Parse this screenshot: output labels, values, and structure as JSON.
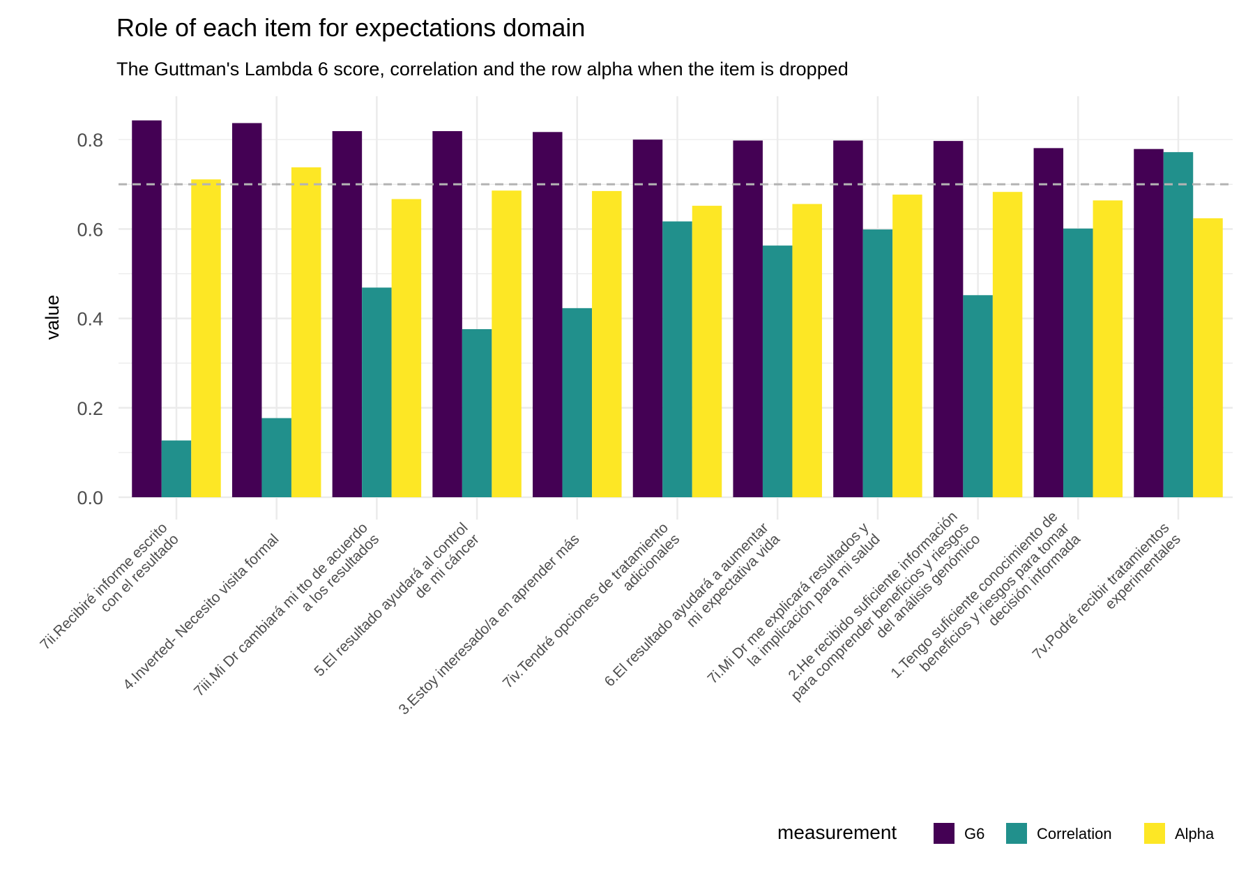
{
  "chart_data": {
    "type": "bar",
    "title": "Role of each item for expectations domain",
    "subtitle": "The Guttman's Lambda 6 score, correlation and the row alpha when the item is dropped",
    "xlabel": "",
    "ylabel": "value",
    "ylim": [
      0,
      0.88
    ],
    "yticks": [
      "0.0",
      "0.2",
      "0.4",
      "0.6",
      "0.8"
    ],
    "ytick_values": [
      0,
      0.2,
      0.4,
      0.6,
      0.8
    ],
    "reference_line": 0.7,
    "grid": true,
    "categories": [
      [
        "7ii.Recibiré informe escrito",
        "con el resultado"
      ],
      [
        "4.Inverted- Necesito visita formal"
      ],
      [
        "7iii.Mi Dr cambiará mi tto de acuerdo",
        "a los resultados"
      ],
      [
        "5.El resultado ayudará al control",
        "de mi cáncer"
      ],
      [
        "3.Estoy interesado/a en aprender más"
      ],
      [
        "7iv.Tendré opciones de tratamiento",
        "adicionales"
      ],
      [
        "6.El resultado ayudará a aumentar",
        "mi expectativa vida"
      ],
      [
        "7i.Mi Dr me explicará resultados y",
        "la implicación para mi salud"
      ],
      [
        "2.He recibido suficiente información",
        "para comprender beneficios y riesgos",
        "del análisis genómico"
      ],
      [
        "1.Tengo suficiente conocimiento de",
        "beneficios y riesgos para tomar",
        "decisión informada"
      ],
      [
        "7v.Podré recibir tratamientos",
        "experimentales"
      ]
    ],
    "series": [
      {
        "name": "G6",
        "color": "#440154",
        "values": [
          0.843,
          0.837,
          0.819,
          0.819,
          0.817,
          0.8,
          0.798,
          0.798,
          0.797,
          0.781,
          0.779
        ]
      },
      {
        "name": "Correlation",
        "color": "#21908C",
        "values": [
          0.127,
          0.177,
          0.469,
          0.376,
          0.423,
          0.617,
          0.563,
          0.599,
          0.452,
          0.601,
          0.772
        ]
      },
      {
        "name": "Alpha",
        "color": "#FDE725",
        "values": [
          0.711,
          0.738,
          0.667,
          0.686,
          0.685,
          0.652,
          0.656,
          0.677,
          0.683,
          0.664,
          0.624
        ]
      }
    ],
    "legend": {
      "title": "measurement",
      "position": "bottom-right"
    }
  }
}
